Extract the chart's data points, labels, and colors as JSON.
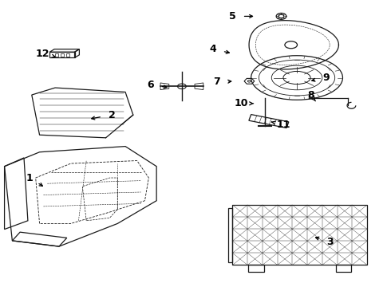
{
  "bg_color": "#ffffff",
  "line_color": "#1a1a1a",
  "label_positions": {
    "1": [
      0.075,
      0.38,
      0.115,
      0.345
    ],
    "2": [
      0.285,
      0.6,
      0.225,
      0.585
    ],
    "3": [
      0.845,
      0.155,
      0.8,
      0.175
    ],
    "4": [
      0.545,
      0.83,
      0.595,
      0.815
    ],
    "5": [
      0.595,
      0.945,
      0.655,
      0.945
    ],
    "6": [
      0.385,
      0.705,
      0.435,
      0.695
    ],
    "7": [
      0.555,
      0.715,
      0.6,
      0.718
    ],
    "8": [
      0.795,
      0.67,
      0.808,
      0.648
    ],
    "9": [
      0.835,
      0.73,
      0.79,
      0.718
    ],
    "10": [
      0.618,
      0.64,
      0.655,
      0.64
    ],
    "11": [
      0.725,
      0.565,
      0.688,
      0.578
    ],
    "12": [
      0.108,
      0.815,
      0.148,
      0.8
    ]
  }
}
